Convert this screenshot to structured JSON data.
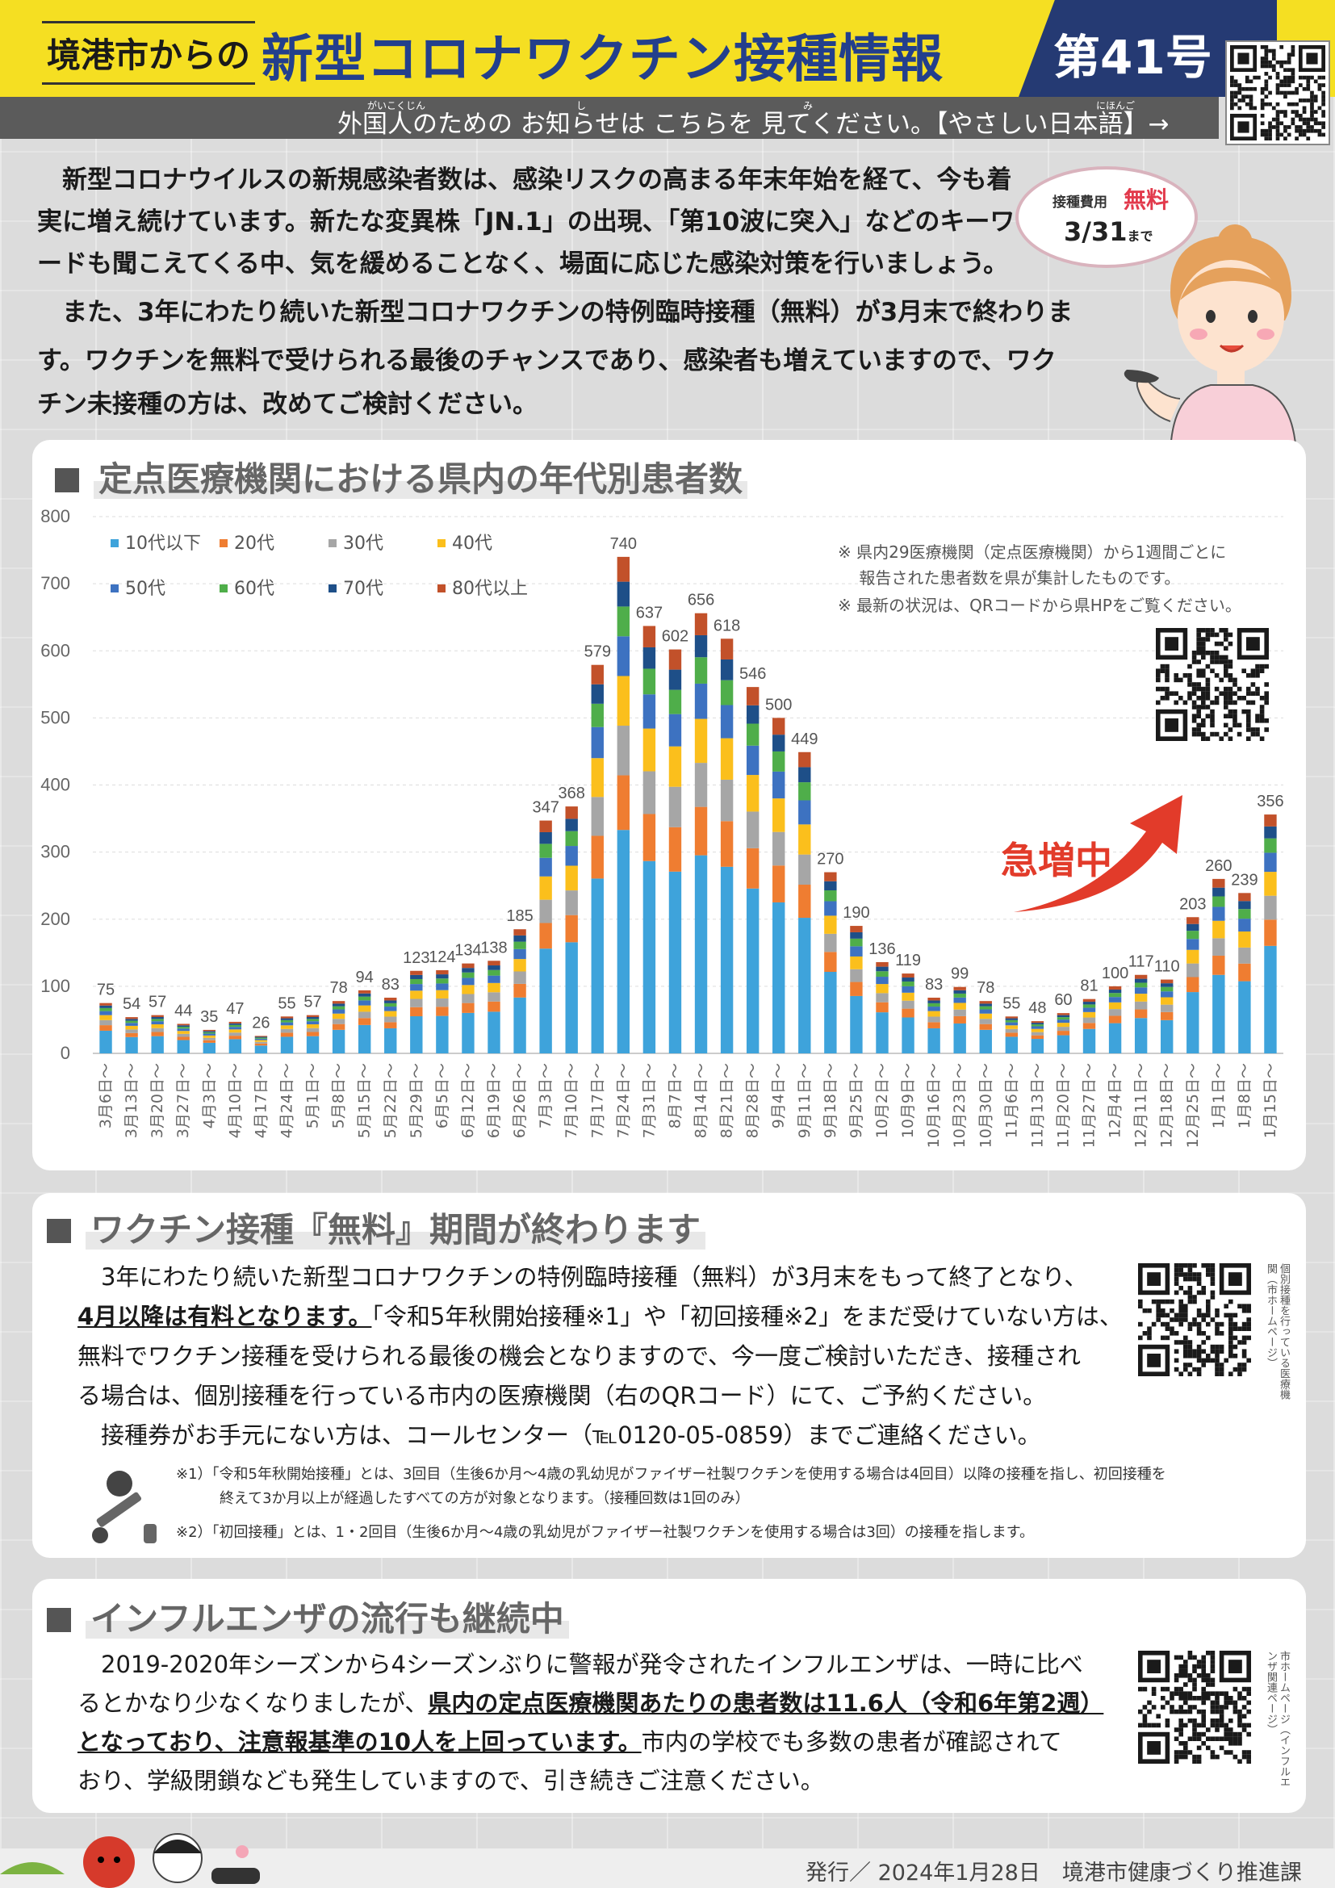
{
  "header": {
    "prefix": "境港市からの",
    "title": "新型コロナワクチン接種情報",
    "issue": "第41号",
    "subbar": "外国人のための お知らせは こちらを 見てください。【やさしい日本語】→",
    "subbar_ruby_1": "がいこくじん",
    "subbar_ruby_2": "し",
    "subbar_ruby_3": "み",
    "subbar_ruby_4": "にほんご"
  },
  "intro": {
    "lines": [
      "　新型コロナウイルスの新規感染者数は、感染リスクの高まる年末年始を経て、今も着",
      "実に増え続けています。新たな変異株「JN.1」の出現、「第10波に突入」などのキーワ",
      "ードも聞こえてくる中、気を緩めることなく、場面に応じた感染対策を行いましょう。",
      "　また、3年にわたり続いた新型コロナワクチンの特例臨時接種（無料）が3月末で終わりま",
      "す。ワクチンを無料で受けられる最後のチャンスであり、感染者も増えていますので、ワク",
      "チン未接種の方は、改めてご検討ください。"
    ],
    "bubble": {
      "label": "接種費用",
      "free": "無料",
      "date": "3/31",
      "date_suffix": "まで"
    }
  },
  "chart_section": {
    "heading": "定点医療機関における県内の年代別患者数",
    "notes": [
      "※ 県内29医療機関（定点医療機関）から1週間ごとに",
      "　 報告された患者数を県が集計したものです。",
      "※ 最新の状況は、QRコードから県HPをご覧ください。"
    ],
    "callout": "急増中"
  },
  "chart_data": {
    "type": "bar",
    "stacked": true,
    "ylim": [
      0,
      800
    ],
    "yticks": [
      0,
      100,
      200,
      300,
      400,
      500,
      600,
      700,
      800
    ],
    "grid": true,
    "legend_position": "top-left",
    "categories": [
      "3月6日～",
      "3月13日～",
      "3月20日～",
      "3月27日～",
      "4月3日～",
      "4月10日～",
      "4月17日～",
      "4月24日～",
      "5月1日～",
      "5月8日～",
      "5月15日～",
      "5月22日～",
      "5月29日～",
      "6月5日～",
      "6月12日～",
      "6月19日～",
      "6月26日～",
      "7月3日～",
      "7月10日～",
      "7月17日～",
      "7月24日～",
      "7月31日～",
      "8月7日～",
      "8月14日～",
      "8月21日～",
      "8月28日～",
      "9月4日～",
      "9月11日～",
      "9月18日～",
      "9月25日～",
      "10月2日～",
      "10月9日～",
      "10月16日～",
      "10月23日～",
      "10月30日～",
      "11月6日～",
      "11月13日～",
      "11月20日～",
      "11月27日～",
      "12月4日～",
      "12月11日～",
      "12月18日～",
      "12月25日～",
      "1月1日～",
      "1月8日～",
      "1月15日～"
    ],
    "totals": [
      75,
      54,
      57,
      44,
      35,
      47,
      26,
      55,
      57,
      78,
      94,
      83,
      123,
      124,
      134,
      138,
      185,
      347,
      368,
      579,
      740,
      637,
      602,
      656,
      618,
      546,
      500,
      449,
      270,
      190,
      136,
      119,
      83,
      99,
      78,
      55,
      48,
      60,
      81,
      100,
      117,
      110,
      203,
      260,
      239,
      356
    ],
    "total_labels": [
      "75",
      "54",
      "57",
      "44",
      "35",
      "47",
      "26",
      "55",
      "57",
      "78",
      "94",
      "83",
      "123",
      "124",
      "134",
      "138",
      "185",
      "347",
      "368",
      "579",
      "740",
      "637",
      "602",
      "656",
      "618",
      "546",
      "500",
      "449",
      "270",
      "190",
      "136",
      "119",
      "83",
      "99",
      "78",
      "55",
      "48",
      "60",
      "81",
      "100",
      "117",
      "110",
      "203",
      "260",
      "239",
      "356"
    ],
    "series": [
      {
        "name": "10代以下",
        "color": "#3ea3db",
        "share": 0.45
      },
      {
        "name": "20代",
        "color": "#ef7d31",
        "share": 0.11
      },
      {
        "name": "30代",
        "color": "#a6a6a6",
        "share": 0.1
      },
      {
        "name": "40代",
        "color": "#fbbf1c",
        "share": 0.1
      },
      {
        "name": "50代",
        "color": "#3d72c1",
        "share": 0.08
      },
      {
        "name": "60代",
        "color": "#4fae4a",
        "share": 0.06
      },
      {
        "name": "70代",
        "color": "#1e4f88",
        "share": 0.05
      },
      {
        "name": "80代以上",
        "color": "#c2512a",
        "share": 0.05
      }
    ]
  },
  "section2": {
    "heading": "ワクチン接種『無料』期間が終わります",
    "line1": "　3年にわたり続いた新型コロナワクチンの特例臨時接種（無料）が3月末をもって終了となり、",
    "line2_bold": "4月以降は有料となります。",
    "line2_rest": "「令和5年秋開始接種※1」や「初回接種※2」をまだ受けていない方は、",
    "line3": "無料でワクチン接種を受けられる最後の機会となりますので、今一度ご検討いただき、接種され",
    "line4": "る場合は、個別接種を行っている市内の医療機関（右のQRコード）にて、ご予約ください。",
    "line5": "　接種券がお手元にない方は、コールセンター（℡0120-05-0859）までご連絡ください。",
    "qr_label": "個別接種を行っている医療機関（市ホームページ）",
    "footnote1a": "※1）「令和5年秋開始接種」とは、3回目（生後6か月～4歳の乳幼児がファイザー社製ワクチンを使用する場合は4回目）以降の接種を指し、初回接種を",
    "footnote1b": "　　　終えて3か月以上が経過したすべての方が対象となります。（接種回数は1回のみ）",
    "footnote2": "※2）「初回接種」とは、1・2回目（生後6か月～4歳の乳幼児がファイザー社製ワクチンを使用する場合は3回）の接種を指します。"
  },
  "section3": {
    "heading": "インフルエンザの流行も継続中",
    "line1": "　2019-2020年シーズンから4シーズンぶりに警報が発令されたインフルエンザは、一時に比べ",
    "line2_plain": "るとかなり少なくなりましたが、",
    "line2_bold": "県内の定点医療機関あたりの患者数は11.6人（令和6年第2週）",
    "line3_bold": "となっており、注意報基準の10人を上回っています。",
    "line3_rest": "市内の学校でも多数の患者が確認されて",
    "line4": "おり、学級閉鎖なども発生していますので、引き続きご注意ください。",
    "qr_label": "市ホームページ（インフルエンザ関連ページ）"
  },
  "footer": {
    "text": "発行／ 2024年1月28日　境港市健康づくり推進課"
  }
}
